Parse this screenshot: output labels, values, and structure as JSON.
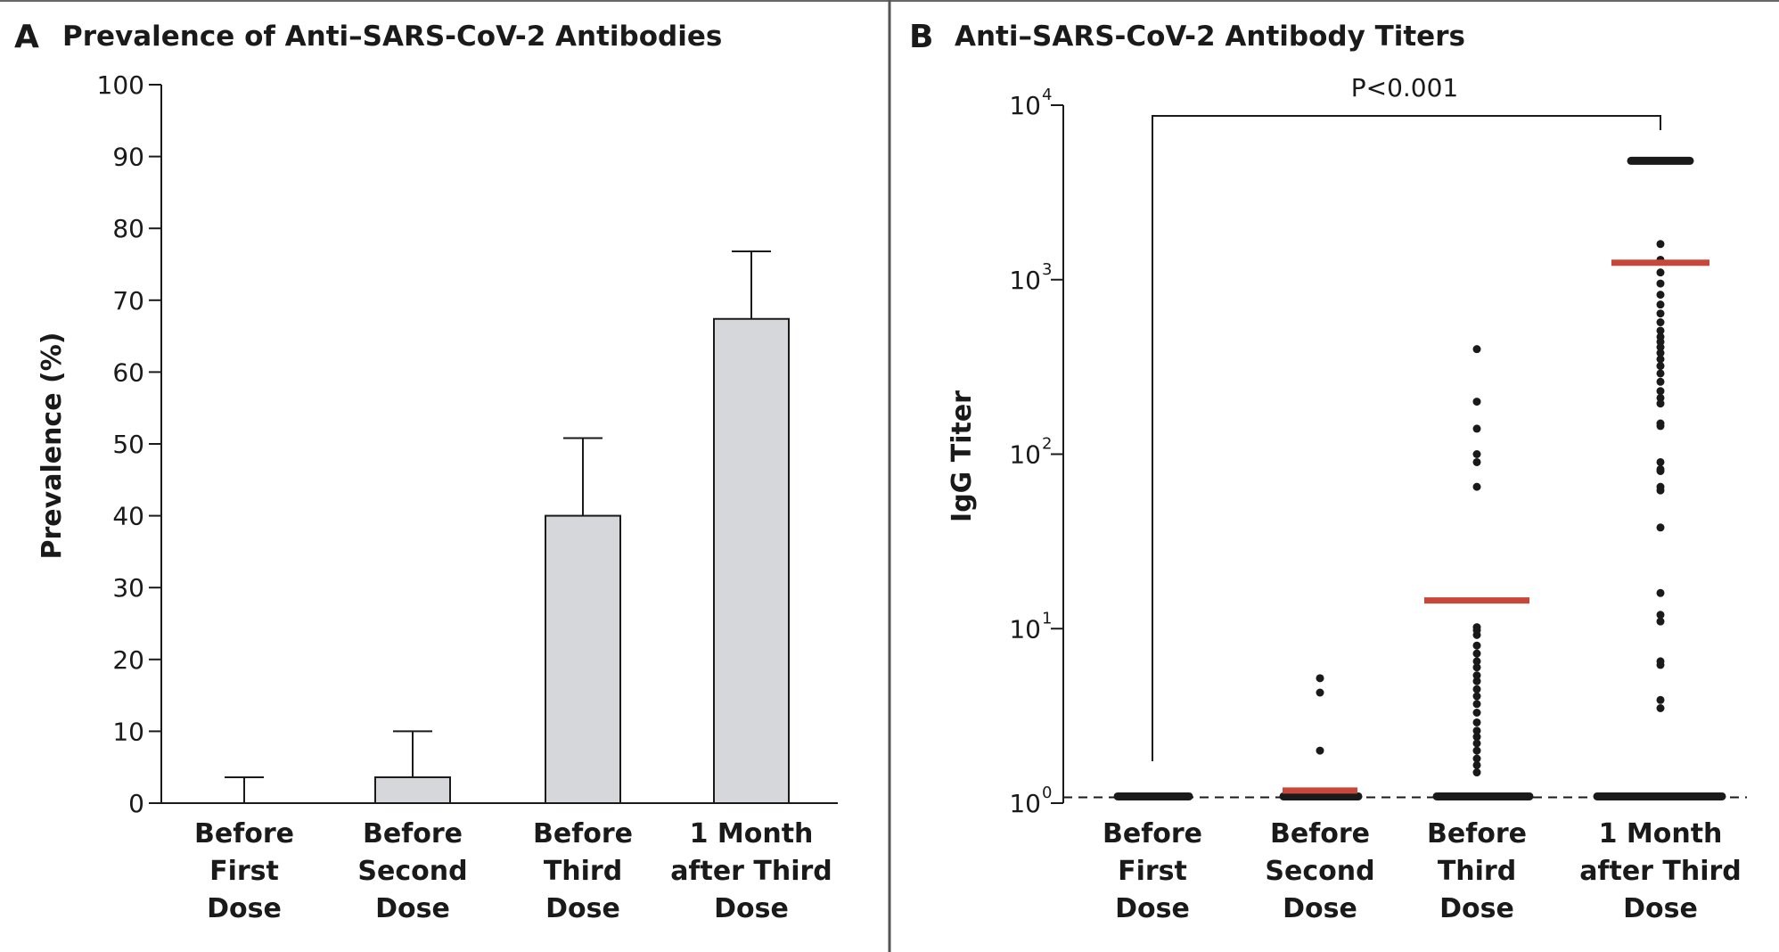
{
  "colors": {
    "bar_fill": "#d5d7db",
    "median": "#c8473a",
    "ink": "#1a1a1a",
    "divider": "#555555"
  },
  "chart_data": [
    {
      "panel": "A",
      "title": "Prevalence of Anti–SARS-CoV-2 Antibodies",
      "type": "bar",
      "categories": [
        "Before First Dose",
        "Before Second Dose",
        "Before Third Dose",
        "1 Month after Third Dose"
      ],
      "category_lines": [
        [
          "Before",
          "First",
          "Dose"
        ],
        [
          "Before",
          "Second",
          "Dose"
        ],
        [
          "Before",
          "Third",
          "Dose"
        ],
        [
          "1 Month",
          "after Third",
          "Dose"
        ]
      ],
      "values": [
        0,
        3.6,
        40.0,
        67.4
      ],
      "error_upper": [
        3.6,
        10.0,
        50.8,
        76.8
      ],
      "ylabel": "Prevalence (%)",
      "xlabel": "",
      "ylim": [
        0,
        100
      ],
      "yticks": [
        0,
        10,
        20,
        30,
        40,
        50,
        60,
        70,
        80,
        90,
        100
      ],
      "grid": false
    },
    {
      "panel": "B",
      "title": "Anti–SARS-CoV-2 Antibody Titers",
      "type": "scatter",
      "yscale": "log",
      "categories": [
        "Before First Dose",
        "Before Second Dose",
        "Before Third Dose",
        "1 Month after Third Dose"
      ],
      "category_lines": [
        [
          "Before",
          "First",
          "Dose"
        ],
        [
          "Before",
          "Second",
          "Dose"
        ],
        [
          "Before",
          "Third",
          "Dose"
        ],
        [
          "1 Month",
          "after Third",
          "Dose"
        ]
      ],
      "ylabel": "IgG Titer",
      "xlabel": "",
      "ylim": [
        1,
        10000
      ],
      "yticks": [
        {
          "base": "10",
          "exp": "0",
          "value": 1
        },
        {
          "base": "10",
          "exp": "1",
          "value": 10
        },
        {
          "base": "10",
          "exp": "2",
          "value": 100
        },
        {
          "base": "10",
          "exp": "3",
          "value": 1000
        },
        {
          "base": "10",
          "exp": "4",
          "value": 10000
        }
      ],
      "detection_limit": 1.08,
      "floor_value": 1.08,
      "cap_value": 4800,
      "points": [
        [],
        [
          5.2,
          4.3,
          2.0
        ],
        [
          400,
          200,
          140,
          100,
          90,
          65,
          10.2,
          9.8,
          9.2,
          8.0,
          7.2,
          6.5,
          6.0,
          5.4,
          5.0,
          4.5,
          4.1,
          3.7,
          3.3,
          2.9,
          2.6,
          2.4,
          2.2,
          2.0,
          1.8,
          1.65,
          1.5
        ],
        [
          1600,
          1300,
          1100,
          950,
          820,
          720,
          640,
          570,
          510,
          470,
          440,
          410,
          380,
          350,
          320,
          290,
          260,
          230,
          210,
          195,
          150,
          145,
          90,
          82,
          80,
          65,
          62,
          38,
          16,
          12,
          11,
          6.5,
          6.2,
          3.9,
          3.5
        ]
      ],
      "medians": [
        null,
        1.18,
        14.5,
        1250
      ],
      "annotation": "P<0.001",
      "bracket_from": 0,
      "bracket_to": 3,
      "grid": false
    }
  ]
}
